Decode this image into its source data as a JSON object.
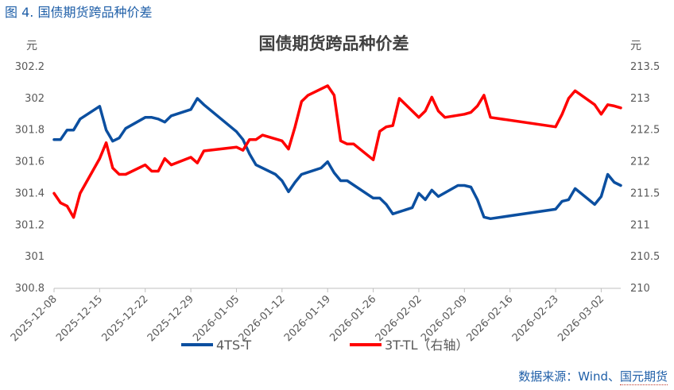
{
  "figure_label": "图 4.  国债期货跨品种价差",
  "source": "数据来源：Wind、国元期货",
  "chart_data": {
    "type": "line",
    "title": "国债期货跨品种价差",
    "ylabel_left": "元",
    "ylabel_right": "元",
    "ylim_left": [
      300.8,
      302.2
    ],
    "yticks_left": [
      "302.2",
      "302",
      "301.8",
      "301.6",
      "301.4",
      "301.2",
      "301",
      "300.8"
    ],
    "ylim_right": [
      210,
      213.5
    ],
    "yticks_right": [
      "213.5",
      "213",
      "212.5",
      "212",
      "211.5",
      "211",
      "210.5",
      "210"
    ],
    "x_start": "2025-12-08",
    "xticks": [
      {
        "label": "2025-12-08",
        "day": 0
      },
      {
        "label": "2025-12-15",
        "day": 7
      },
      {
        "label": "2025-12-22",
        "day": 14
      },
      {
        "label": "2025-12-29",
        "day": 21
      },
      {
        "label": "2026-01-05",
        "day": 28
      },
      {
        "label": "2026-01-12",
        "day": 35
      },
      {
        "label": "2026-01-19",
        "day": 42
      },
      {
        "label": "2026-01-26",
        "day": 49
      },
      {
        "label": "2026-02-02",
        "day": 56
      },
      {
        "label": "2026-02-09",
        "day": 63
      },
      {
        "label": "2026-02-16",
        "day": 70
      },
      {
        "label": "2026-02-23",
        "day": 77
      },
      {
        "label": "2026-03-02",
        "day": 84
      }
    ],
    "x_max_day": 87,
    "series": [
      {
        "name": "4TS-T",
        "axis": "left",
        "color": "#0b4fa0",
        "points": [
          [
            0,
            301.74
          ],
          [
            1,
            301.74
          ],
          [
            2,
            301.8
          ],
          [
            3,
            301.8
          ],
          [
            4,
            301.87
          ],
          [
            7,
            301.95
          ],
          [
            8,
            301.8
          ],
          [
            9,
            301.73
          ],
          [
            10,
            301.75
          ],
          [
            11,
            301.81
          ],
          [
            14,
            301.88
          ],
          [
            15,
            301.88
          ],
          [
            16,
            301.87
          ],
          [
            17,
            301.85
          ],
          [
            18,
            301.89
          ],
          [
            21,
            301.93
          ],
          [
            22,
            302.0
          ],
          [
            23,
            301.96
          ],
          [
            28,
            301.79
          ],
          [
            29,
            301.74
          ],
          [
            30,
            301.65
          ],
          [
            31,
            301.58
          ],
          [
            34,
            301.52
          ],
          [
            35,
            301.48
          ],
          [
            36,
            301.41
          ],
          [
            37,
            301.47
          ],
          [
            38,
            301.52
          ],
          [
            41,
            301.56
          ],
          [
            42,
            301.6
          ],
          [
            43,
            301.53
          ],
          [
            44,
            301.48
          ],
          [
            45,
            301.48
          ],
          [
            49,
            301.37
          ],
          [
            50,
            301.37
          ],
          [
            51,
            301.33
          ],
          [
            52,
            301.27
          ],
          [
            55,
            301.31
          ],
          [
            56,
            301.4
          ],
          [
            57,
            301.36
          ],
          [
            58,
            301.42
          ],
          [
            59,
            301.38
          ],
          [
            62,
            301.45
          ],
          [
            63,
            301.45
          ],
          [
            64,
            301.44
          ],
          [
            65,
            301.36
          ],
          [
            66,
            301.25
          ],
          [
            67,
            301.24
          ],
          [
            77,
            301.3
          ],
          [
            78,
            301.35
          ],
          [
            79,
            301.36
          ],
          [
            80,
            301.43
          ],
          [
            83,
            301.33
          ],
          [
            84,
            301.38
          ],
          [
            85,
            301.52
          ],
          [
            86,
            301.47
          ],
          [
            87,
            301.45
          ]
        ]
      },
      {
        "name": "3T-TL（右轴）",
        "axis": "right",
        "color": "#ff0000",
        "points": [
          [
            0,
            211.5
          ],
          [
            1,
            211.35
          ],
          [
            2,
            211.3
          ],
          [
            3,
            211.12
          ],
          [
            4,
            211.5
          ],
          [
            7,
            212.05
          ],
          [
            8,
            212.3
          ],
          [
            9,
            211.9
          ],
          [
            10,
            211.8
          ],
          [
            11,
            211.8
          ],
          [
            14,
            211.95
          ],
          [
            15,
            211.85
          ],
          [
            16,
            211.85
          ],
          [
            17,
            212.05
          ],
          [
            18,
            211.95
          ],
          [
            21,
            212.07
          ],
          [
            22,
            211.98
          ],
          [
            23,
            212.17
          ],
          [
            28,
            212.23
          ],
          [
            29,
            212.18
          ],
          [
            30,
            212.35
          ],
          [
            31,
            212.35
          ],
          [
            32,
            212.42
          ],
          [
            35,
            212.33
          ],
          [
            36,
            212.2
          ],
          [
            37,
            212.55
          ],
          [
            38,
            212.95
          ],
          [
            39,
            213.05
          ],
          [
            42,
            213.2
          ],
          [
            43,
            213.05
          ],
          [
            44,
            212.33
          ],
          [
            45,
            212.28
          ],
          [
            46,
            212.28
          ],
          [
            49,
            212.03
          ],
          [
            50,
            212.48
          ],
          [
            51,
            212.55
          ],
          [
            52,
            212.57
          ],
          [
            53,
            213.0
          ],
          [
            56,
            212.7
          ],
          [
            57,
            212.8
          ],
          [
            58,
            213.02
          ],
          [
            59,
            212.8
          ],
          [
            60,
            212.7
          ],
          [
            63,
            212.75
          ],
          [
            64,
            212.78
          ],
          [
            65,
            212.88
          ],
          [
            66,
            213.05
          ],
          [
            67,
            212.7
          ],
          [
            77,
            212.55
          ],
          [
            78,
            212.75
          ],
          [
            79,
            213.0
          ],
          [
            80,
            213.12
          ],
          [
            83,
            212.9
          ],
          [
            84,
            212.75
          ],
          [
            85,
            212.9
          ],
          [
            86,
            212.88
          ],
          [
            87,
            212.85
          ]
        ]
      }
    ]
  }
}
